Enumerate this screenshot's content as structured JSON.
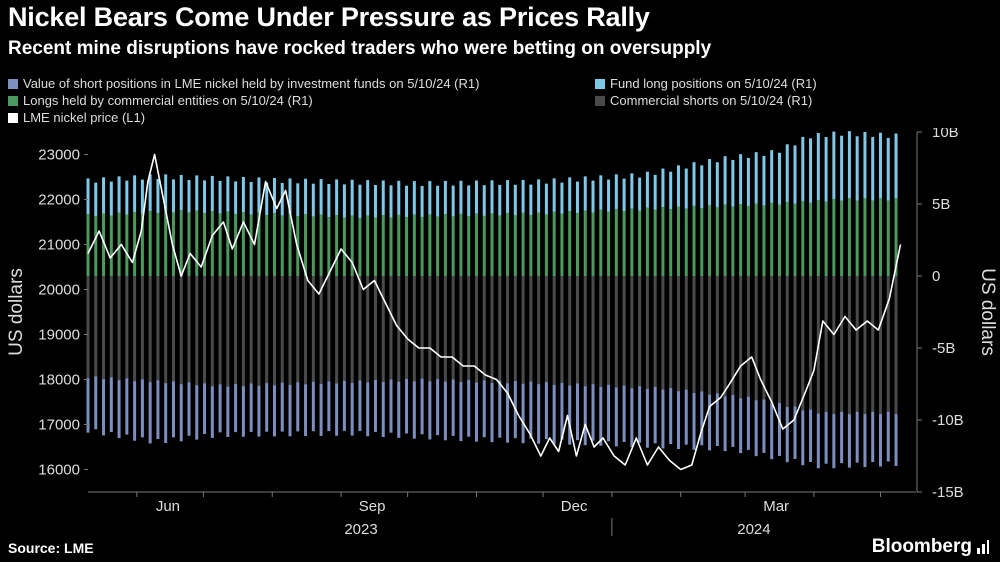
{
  "header": {
    "title": "Nickel Bears Come Under Pressure as Prices Rally",
    "subtitle": "Recent mine disruptions have rocked traders who were betting on oversupply"
  },
  "footer": {
    "source": "Source: LME",
    "brand": "Bloomberg"
  },
  "colors": {
    "background": "#000000",
    "fund_shorts": "#7d8fbf",
    "fund_longs": "#7ec8e8",
    "commercial_longs": "#4a9a5e",
    "commercial_shorts": "#4a4a4a",
    "price_line": "#ffffff",
    "axis_text": "#dddddd"
  },
  "chart_data": {
    "type": "bar",
    "legend": [
      {
        "name": "Value of short positions in LME nickel held by investment funds on 5/10/24 (R1)",
        "color": "#7d8fbf"
      },
      {
        "name": "Fund long positions on 5/10/24 (R1)",
        "color": "#7ec8e8"
      },
      {
        "name": "Longs held by commercial entities on 5/10/24 (R1)",
        "color": "#4a9a5e"
      },
      {
        "name": "Commercial shorts on 5/10/24 (R1)",
        "color": "#4a4a4a"
      },
      {
        "name": "LME nickel price (L1)",
        "color": "#ffffff"
      }
    ],
    "left_axis": {
      "label": "US dollars",
      "ticks": [
        "23000",
        "22000",
        "21000",
        "20000",
        "19000",
        "18000",
        "17000",
        "16000"
      ],
      "range": [
        15500,
        23500
      ]
    },
    "right_axis": {
      "label": "US dollars",
      "ticks": [
        "10B",
        "5B",
        "0",
        "-5B",
        "-10B",
        "-15B"
      ],
      "range": [
        -15000000000,
        10000000000
      ]
    },
    "x_axis": {
      "months": [
        "Jun",
        "Sep",
        "Dec",
        "Mar"
      ],
      "years": [
        "2023",
        "2024"
      ],
      "start": "2023-05-10",
      "end": "2024-05-17"
    },
    "bar_series": {
      "x_start": "2023-05-10",
      "x_end": "2024-05-10",
      "fund_longs_top_B": [
        [
          0,
          6.6
        ],
        [
          30,
          6.9
        ],
        [
          90,
          6.6
        ],
        [
          150,
          6.4
        ],
        [
          200,
          6.5
        ],
        [
          250,
          7.0
        ],
        [
          285,
          8.1
        ],
        [
          310,
          8.6
        ],
        [
          325,
          9.7
        ],
        [
          340,
          9.9
        ],
        [
          366,
          9.7
        ]
      ],
      "commercial_longs_top_B": [
        [
          0,
          4.2
        ],
        [
          40,
          4.5
        ],
        [
          120,
          4.1
        ],
        [
          200,
          4.3
        ],
        [
          260,
          4.7
        ],
        [
          310,
          5.0
        ],
        [
          340,
          5.3
        ],
        [
          366,
          5.3
        ]
      ],
      "commercial_shorts_bottom_B": [
        [
          0,
          -7.0
        ],
        [
          60,
          -7.6
        ],
        [
          150,
          -7.2
        ],
        [
          200,
          -7.4
        ],
        [
          260,
          -7.8
        ],
        [
          300,
          -8.5
        ],
        [
          330,
          -9.5
        ],
        [
          366,
          -9.5
        ]
      ],
      "fund_shorts_bottom_B": [
        [
          0,
          -10.7
        ],
        [
          30,
          -11.5
        ],
        [
          60,
          -11.0
        ],
        [
          120,
          -10.9
        ],
        [
          170,
          -11.3
        ],
        [
          230,
          -11.6
        ],
        [
          290,
          -12.0
        ],
        [
          330,
          -13.2
        ],
        [
          366,
          -13.0
        ]
      ]
    },
    "price_series": {
      "name": "LME nickel price (L1)",
      "points": [
        [
          "2023-05-10",
          20800
        ],
        [
          "2023-05-15",
          21300
        ],
        [
          "2023-05-20",
          20700
        ],
        [
          "2023-05-25",
          21000
        ],
        [
          "2023-05-30",
          20600
        ],
        [
          "2023-06-03",
          21300
        ],
        [
          "2023-06-06",
          22400
        ],
        [
          "2023-06-09",
          23000
        ],
        [
          "2023-06-13",
          22000
        ],
        [
          "2023-06-17",
          21000
        ],
        [
          "2023-06-21",
          20300
        ],
        [
          "2023-06-25",
          20800
        ],
        [
          "2023-06-30",
          20500
        ],
        [
          "2023-07-05",
          21200
        ],
        [
          "2023-07-10",
          21500
        ],
        [
          "2023-07-14",
          20900
        ],
        [
          "2023-07-19",
          21500
        ],
        [
          "2023-07-24",
          21000
        ],
        [
          "2023-07-29",
          22400
        ],
        [
          "2023-08-03",
          21800
        ],
        [
          "2023-08-07",
          22200
        ],
        [
          "2023-08-12",
          21000
        ],
        [
          "2023-08-17",
          20200
        ],
        [
          "2023-08-22",
          19900
        ],
        [
          "2023-08-27",
          20400
        ],
        [
          "2023-09-01",
          20900
        ],
        [
          "2023-09-06",
          20600
        ],
        [
          "2023-09-11",
          20000
        ],
        [
          "2023-09-16",
          20200
        ],
        [
          "2023-09-21",
          19700
        ],
        [
          "2023-09-26",
          19200
        ],
        [
          "2023-10-01",
          18900
        ],
        [
          "2023-10-06",
          18700
        ],
        [
          "2023-10-11",
          18700
        ],
        [
          "2023-10-16",
          18500
        ],
        [
          "2023-10-21",
          18500
        ],
        [
          "2023-10-26",
          18300
        ],
        [
          "2023-10-31",
          18300
        ],
        [
          "2023-11-05",
          18100
        ],
        [
          "2023-11-10",
          18000
        ],
        [
          "2023-11-15",
          17700
        ],
        [
          "2023-11-20",
          17200
        ],
        [
          "2023-11-25",
          16800
        ],
        [
          "2023-11-30",
          16300
        ],
        [
          "2023-12-04",
          16700
        ],
        [
          "2023-12-08",
          16400
        ],
        [
          "2023-12-12",
          17200
        ],
        [
          "2023-12-16",
          16300
        ],
        [
          "2023-12-20",
          17000
        ],
        [
          "2023-12-24",
          16500
        ],
        [
          "2023-12-28",
          16700
        ],
        [
          "2024-01-02",
          16300
        ],
        [
          "2024-01-07",
          16100
        ],
        [
          "2024-01-12",
          16700
        ],
        [
          "2024-01-17",
          16100
        ],
        [
          "2024-01-22",
          16500
        ],
        [
          "2024-01-27",
          16200
        ],
        [
          "2024-02-01",
          16000
        ],
        [
          "2024-02-06",
          16100
        ],
        [
          "2024-02-10",
          16800
        ],
        [
          "2024-02-14",
          17400
        ],
        [
          "2024-02-19",
          17600
        ],
        [
          "2024-02-23",
          17900
        ],
        [
          "2024-02-28",
          18300
        ],
        [
          "2024-03-04",
          18500
        ],
        [
          "2024-03-08",
          18000
        ],
        [
          "2024-03-13",
          17500
        ],
        [
          "2024-03-18",
          16900
        ],
        [
          "2024-03-23",
          17100
        ],
        [
          "2024-03-28",
          17700
        ],
        [
          "2024-04-01",
          18200
        ],
        [
          "2024-04-05",
          19300
        ],
        [
          "2024-04-10",
          19000
        ],
        [
          "2024-04-15",
          19400
        ],
        [
          "2024-04-20",
          19100
        ],
        [
          "2024-04-25",
          19300
        ],
        [
          "2024-04-30",
          19100
        ],
        [
          "2024-05-05",
          19800
        ],
        [
          "2024-05-10",
          21000
        ]
      ]
    },
    "grid": false
  }
}
